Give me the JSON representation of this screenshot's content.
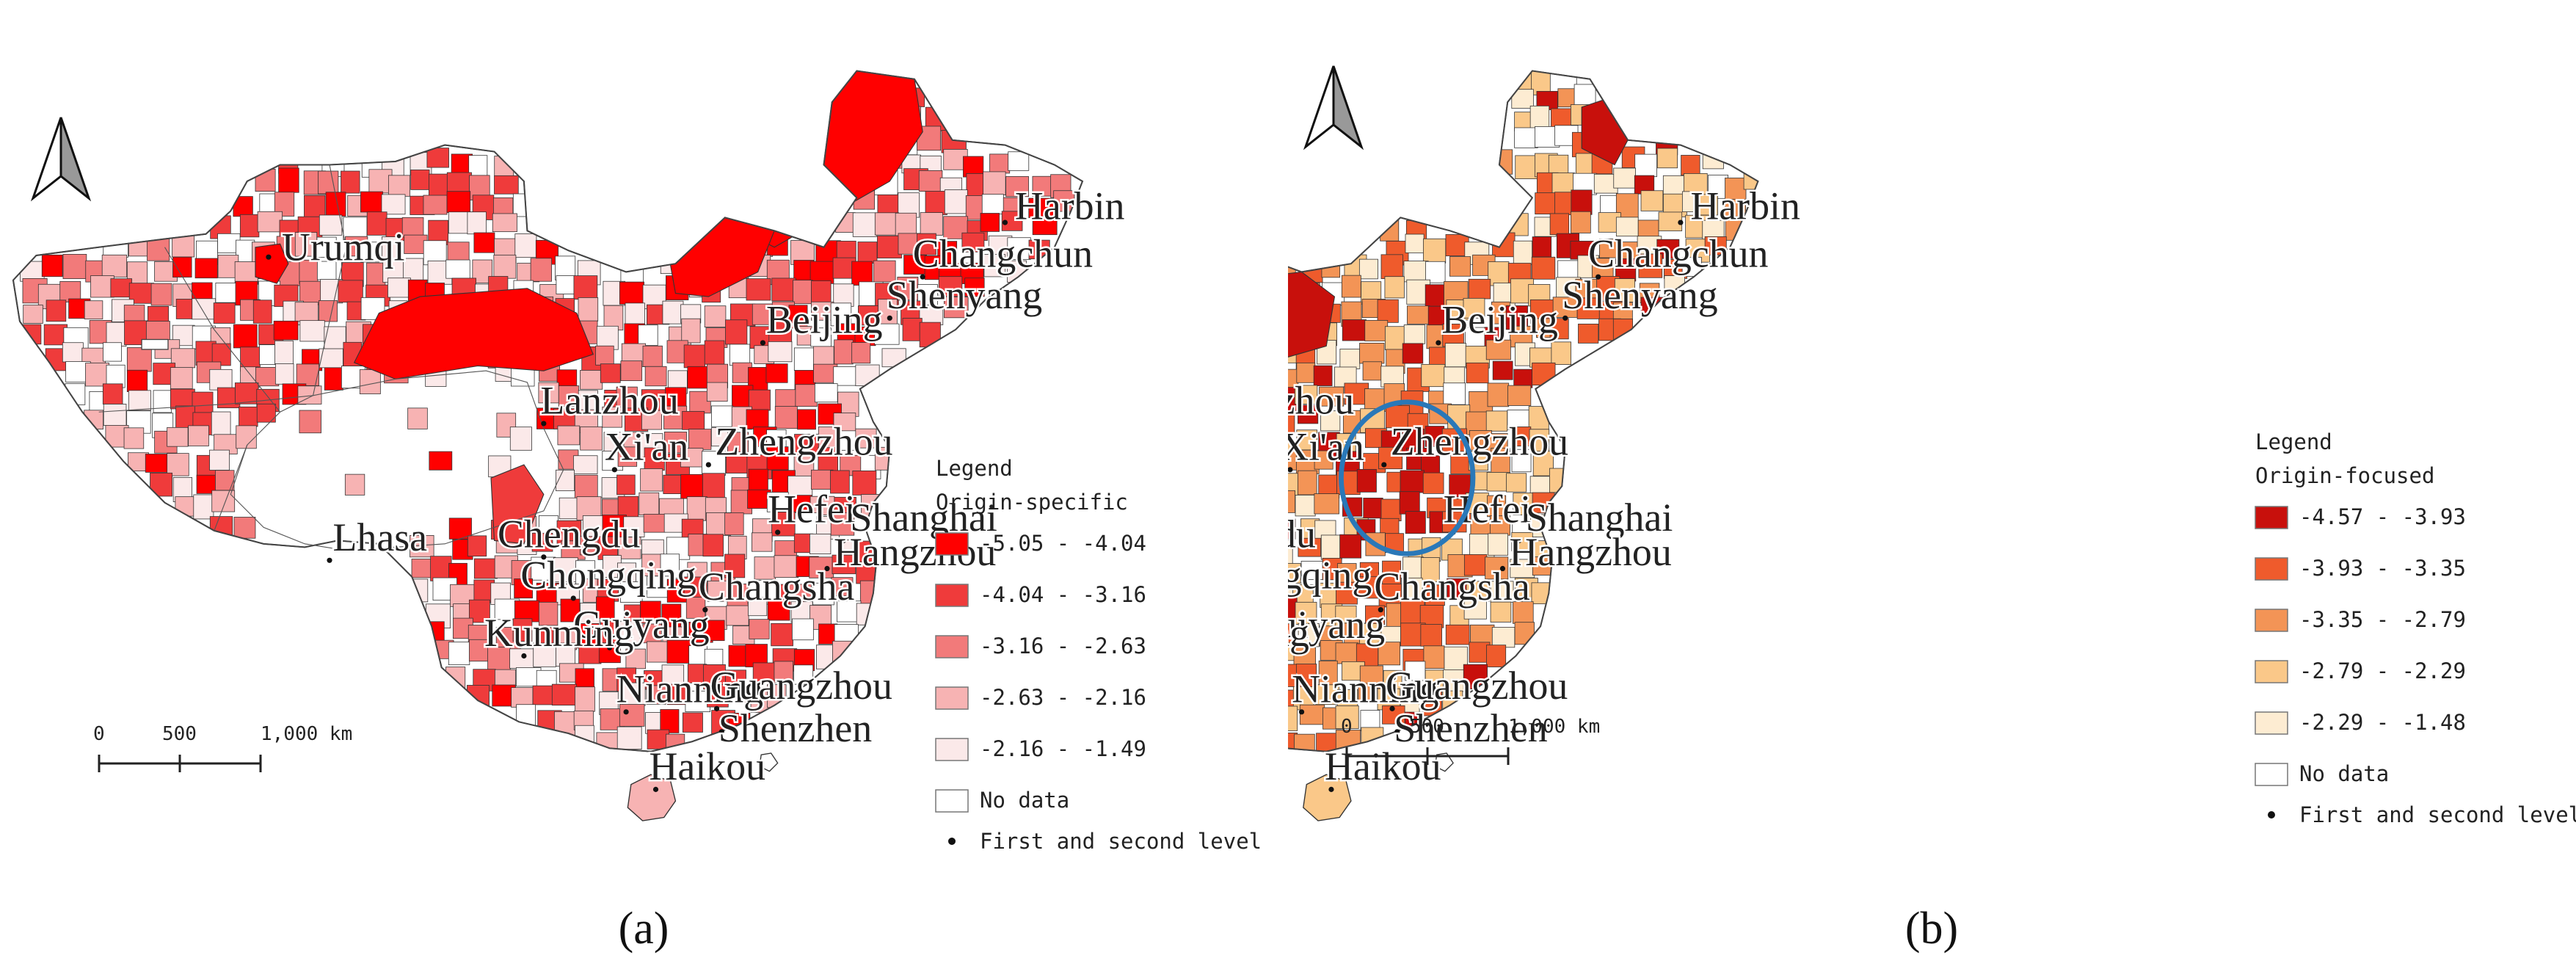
{
  "panels": [
    {
      "id": "a",
      "caption": "(a)",
      "legend": {
        "title": "Legend",
        "subtitle": "Origin-specific",
        "classes": [
          {
            "label": "-5.05 - -4.04",
            "color": "#ff0000"
          },
          {
            "label": "-4.04 - -3.16",
            "color": "#ef3b3b"
          },
          {
            "label": "-3.16 - -2.63",
            "color": "#f27a7a"
          },
          {
            "label": "-2.63 - -2.16",
            "color": "#f7b3b3"
          },
          {
            "label": "-2.16 - -1.49",
            "color": "#fbe9e9"
          }
        ],
        "nodata": "No data",
        "point": "First and second level"
      },
      "scalebar": {
        "ticks": [
          "0",
          "500",
          "1,000 km"
        ]
      },
      "highlight_circle": false
    },
    {
      "id": "b",
      "caption": "(b)",
      "legend": {
        "title": "Legend",
        "subtitle": "Origin-focused",
        "classes": [
          {
            "label": "-4.57 - -3.93",
            "color": "#c8100c"
          },
          {
            "label": "-3.93 - -3.35",
            "color": "#ef5b2c"
          },
          {
            "label": "-3.35 - -2.79",
            "color": "#f39456"
          },
          {
            "label": "-2.79 - -2.29",
            "color": "#fac889"
          },
          {
            "label": "-2.29 - -1.48",
            "color": "#fdecd2"
          }
        ],
        "nodata": "No data",
        "point": "First and second level"
      },
      "scalebar": {
        "ticks": [
          "0",
          "500",
          "1,000 km"
        ]
      },
      "highlight_circle": true
    }
  ],
  "cities": [
    "Urumqi",
    "Harbin",
    "Changchun",
    "Shenyang",
    "Beijing",
    "Lanzhou",
    "Xi'an",
    "Zhengzhou",
    "Hefei",
    "Shanghai",
    "Hangzhou",
    "Chengdu",
    "Chongqing",
    "Changsha",
    "Lhasa",
    "Guiyang",
    "Kunming",
    "Nianning",
    "Guangzhou",
    "Shenzhen",
    "Haikou"
  ],
  "colors": {
    "border": "#333333",
    "outline": "#444444",
    "circle": "#2a78b8",
    "nodata": "#ffffff"
  }
}
